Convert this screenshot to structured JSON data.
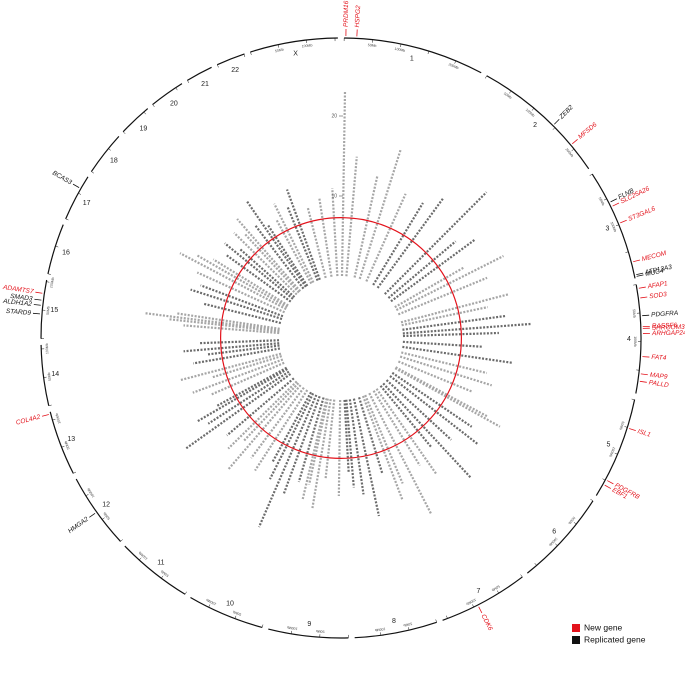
{
  "chart_data": {
    "type": "circular_manhattan",
    "ylim": [
      0,
      25
    ],
    "yticks": [
      10,
      20
    ],
    "threshold": 7.3,
    "threshold_color": "#e3121b",
    "point_colors": [
      "#a6a6a6",
      "#6b6b6b"
    ],
    "mb_ticks": [
      {
        "value": 0,
        "label": "0Mb"
      },
      {
        "value": 50,
        "label": "50Mb"
      },
      {
        "value": 100,
        "label": "100Mb"
      },
      {
        "value": 150,
        "label": "150Mb"
      },
      {
        "value": 200,
        "label": "200Mb"
      }
    ],
    "chromosomes": [
      {
        "name": "1",
        "length": 249,
        "peaks": [
          [
            3,
            23
          ],
          [
            40,
            15
          ],
          [
            110,
            13
          ],
          [
            155,
            17
          ],
          [
            215,
            12
          ]
        ]
      },
      {
        "name": "2",
        "length": 243,
        "peaks": [
          [
            20,
            12
          ],
          [
            65,
            14
          ],
          [
            145,
            18
          ],
          [
            190,
            11
          ],
          [
            225,
            13
          ]
        ]
      },
      {
        "name": "3",
        "length": 198,
        "peaks": [
          [
            30,
            10
          ],
          [
            58,
            15
          ],
          [
            98,
            12
          ],
          [
            169,
            14
          ],
          [
            194,
            11
          ]
        ]
      },
      {
        "name": "4",
        "length": 191,
        "peaks": [
          [
            24,
            13
          ],
          [
            55,
            16
          ],
          [
            77,
            12
          ],
          [
            126,
            10
          ],
          [
            169,
            14
          ]
        ]
      },
      {
        "name": "5",
        "length": 181,
        "peaks": [
          [
            15,
            11
          ],
          [
            51,
            12
          ],
          [
            95,
            10
          ],
          [
            149,
            13
          ],
          [
            158,
            15
          ]
        ]
      },
      {
        "name": "6",
        "length": 171,
        "peaks": [
          [
            12,
            12
          ],
          [
            45,
            14
          ],
          [
            90,
            11
          ],
          [
            130,
            16
          ],
          [
            160,
            10
          ]
        ]
      },
      {
        "name": "7",
        "length": 159,
        "peaks": [
          [
            20,
            13
          ],
          [
            50,
            11
          ],
          [
            92,
            17
          ],
          [
            130,
            12
          ],
          [
            150,
            14
          ]
        ]
      },
      {
        "name": "8",
        "length": 146,
        "peaks": [
          [
            15,
            10
          ],
          [
            60,
            15
          ],
          [
            95,
            12
          ],
          [
            125,
            11
          ],
          [
            140,
            9
          ]
        ]
      },
      {
        "name": "9",
        "length": 141,
        "peaks": [
          [
            20,
            12
          ],
          [
            70,
            10
          ],
          [
            100,
            14
          ],
          [
            125,
            11
          ],
          [
            135,
            13
          ]
        ]
      },
      {
        "name": "10",
        "length": 136,
        "peaks": [
          [
            10,
            11
          ],
          [
            45,
            13
          ],
          [
            75,
            18
          ],
          [
            105,
            12
          ],
          [
            125,
            10
          ]
        ]
      },
      {
        "name": "11",
        "length": 135,
        "peaks": [
          [
            15,
            12
          ],
          [
            50,
            11
          ],
          [
            85,
            14
          ],
          [
            110,
            10
          ],
          [
            130,
            12
          ]
        ]
      },
      {
        "name": "12",
        "length": 134,
        "peaks": [
          [
            20,
            11
          ],
          [
            66,
            16
          ],
          [
            90,
            12
          ],
          [
            115,
            13
          ],
          [
            128,
            10
          ]
        ]
      },
      {
        "name": "13",
        "length": 115,
        "peaks": [
          [
            30,
            10
          ],
          [
            60,
            12
          ],
          [
            90,
            9
          ],
          [
            111,
            13
          ]
        ]
      },
      {
        "name": "14",
        "length": 107,
        "peaks": [
          [
            30,
            11
          ],
          [
            55,
            9
          ],
          [
            75,
            12
          ],
          [
            100,
            10
          ]
        ]
      },
      {
        "name": "15",
        "length": 103,
        "peaks": [
          [
            43,
            12
          ],
          [
            58,
            14
          ],
          [
            67,
            17
          ],
          [
            79,
            13
          ]
        ]
      },
      {
        "name": "16",
        "length": 90,
        "peaks": [
          [
            15,
            10
          ],
          [
            50,
            12
          ],
          [
            75,
            11
          ]
        ]
      },
      {
        "name": "17",
        "length": 83,
        "peaks": [
          [
            10,
            12
          ],
          [
            40,
            15
          ],
          [
            59,
            13
          ],
          [
            75,
            11
          ]
        ]
      },
      {
        "name": "18",
        "length": 78,
        "peaks": [
          [
            20,
            10
          ],
          [
            50,
            11
          ],
          [
            70,
            9
          ]
        ]
      },
      {
        "name": "19",
        "length": 59,
        "peaks": [
          [
            10,
            11
          ],
          [
            35,
            10
          ],
          [
            50,
            12
          ]
        ]
      },
      {
        "name": "20",
        "length": 63,
        "peaks": [
          [
            15,
            10
          ],
          [
            40,
            13
          ],
          [
            55,
            9
          ]
        ]
      },
      {
        "name": "21",
        "length": 48,
        "peaks": [
          [
            20,
            9
          ],
          [
            40,
            11
          ]
        ]
      },
      {
        "name": "22",
        "length": 51,
        "peaks": [
          [
            20,
            10
          ],
          [
            40,
            12
          ]
        ]
      },
      {
        "name": "X",
        "length": 155,
        "peaks": [
          [
            30,
            9
          ],
          [
            80,
            10
          ],
          [
            130,
            11
          ]
        ]
      }
    ],
    "genes": [
      {
        "name": "PRDM16",
        "chr": 0,
        "pos": 3,
        "status": 0
      },
      {
        "name": "HSPG2",
        "chr": 0,
        "pos": 22,
        "status": 0
      },
      {
        "name": "ZEB2",
        "chr": 1,
        "pos": 145,
        "status": 1
      },
      {
        "name": "MFSD6",
        "chr": 1,
        "pos": 191,
        "status": 0
      },
      {
        "name": "FLNB",
        "chr": 2,
        "pos": 58,
        "status": 1
      },
      {
        "name": "SLC25A26",
        "chr": 2,
        "pos": 66,
        "status": 0
      },
      {
        "name": "ST3GAL6",
        "chr": 2,
        "pos": 98,
        "status": 0
      },
      {
        "name": "MECOM",
        "chr": 2,
        "pos": 169,
        "status": 0
      },
      {
        "name": "ATP13A3",
        "chr": 2,
        "pos": 192,
        "status": 1
      },
      {
        "name": "MUC4",
        "chr": 2,
        "pos": 195,
        "status": 1
      },
      {
        "name": "AFAP1",
        "chr": 3,
        "pos": 7,
        "status": 0
      },
      {
        "name": "SOD3",
        "chr": 3,
        "pos": 24,
        "status": 0
      },
      {
        "name": "PDGFRA",
        "chr": 3,
        "pos": 55,
        "status": 1
      },
      {
        "name": "RASSF6",
        "chr": 3,
        "pos": 74,
        "status": 0
      },
      {
        "name": "SHROOM3",
        "chr": 3,
        "pos": 77,
        "status": 0
      },
      {
        "name": "ARHGAP24",
        "chr": 3,
        "pos": 86,
        "status": 0
      },
      {
        "name": "FAT4",
        "chr": 3,
        "pos": 126,
        "status": 0
      },
      {
        "name": "MAP9",
        "chr": 3,
        "pos": 156,
        "status": 0
      },
      {
        "name": "PALLD",
        "chr": 3,
        "pos": 169,
        "status": 0
      },
      {
        "name": "ISL1",
        "chr": 4,
        "pos": 51,
        "status": 0
      },
      {
        "name": "PDGFRB",
        "chr": 4,
        "pos": 149,
        "status": 0
      },
      {
        "name": "EBF1",
        "chr": 4,
        "pos": 158,
        "status": 0
      },
      {
        "name": "CDK6",
        "chr": 6,
        "pos": 92,
        "status": 0
      },
      {
        "name": "HMGA2",
        "chr": 11,
        "pos": 66,
        "status": 1
      },
      {
        "name": "COL4A2",
        "chr": 12,
        "pos": 111,
        "status": 0
      },
      {
        "name": "STARD9",
        "chr": 14,
        "pos": 43,
        "status": 1
      },
      {
        "name": "ALDH1A2",
        "chr": 14,
        "pos": 58,
        "status": 1
      },
      {
        "name": "SMAD3",
        "chr": 14,
        "pos": 67,
        "status": 1
      },
      {
        "name": "ADAMTS7",
        "chr": 14,
        "pos": 79,
        "status": 0
      },
      {
        "name": "BCAS3",
        "chr": 16,
        "pos": 59,
        "status": 1
      }
    ],
    "legend": [
      {
        "name": "New gene",
        "color": "#e3121b"
      },
      {
        "name": "Replicated gene",
        "color": "#111111"
      }
    ]
  }
}
